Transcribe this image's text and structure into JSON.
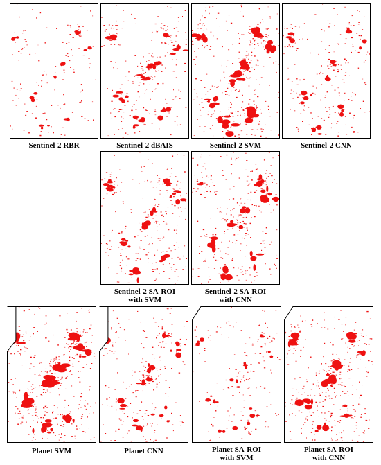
{
  "figure": {
    "colors": {
      "burn": "#ee1111",
      "frame": "#000000",
      "background": "#ffffff"
    },
    "rows": [
      {
        "panels": [
          {
            "caption": [
              "Sentinel-2 RBR"
            ]
          },
          {
            "caption": [
              "Sentinel-2 dBAIS"
            ]
          },
          {
            "caption": [
              "Sentinel-2 SVM"
            ]
          },
          {
            "caption": [
              "Sentinel-2 CNN"
            ]
          }
        ]
      },
      {
        "panels": [
          {
            "caption": [
              "Sentinel-2 SA-ROI",
              "with SVM"
            ]
          },
          {
            "caption": [
              "Sentinel-2 SA-ROI",
              "with CNN"
            ]
          }
        ]
      },
      {
        "panels": [
          {
            "caption": [
              "Planet SVM"
            ]
          },
          {
            "caption": [
              "Planet CNN"
            ]
          },
          {
            "caption": [
              "Planet SA-ROI",
              "with SVM"
            ]
          },
          {
            "caption": [
              "Planet SA-ROI",
              "with CNN"
            ]
          }
        ]
      }
    ]
  }
}
